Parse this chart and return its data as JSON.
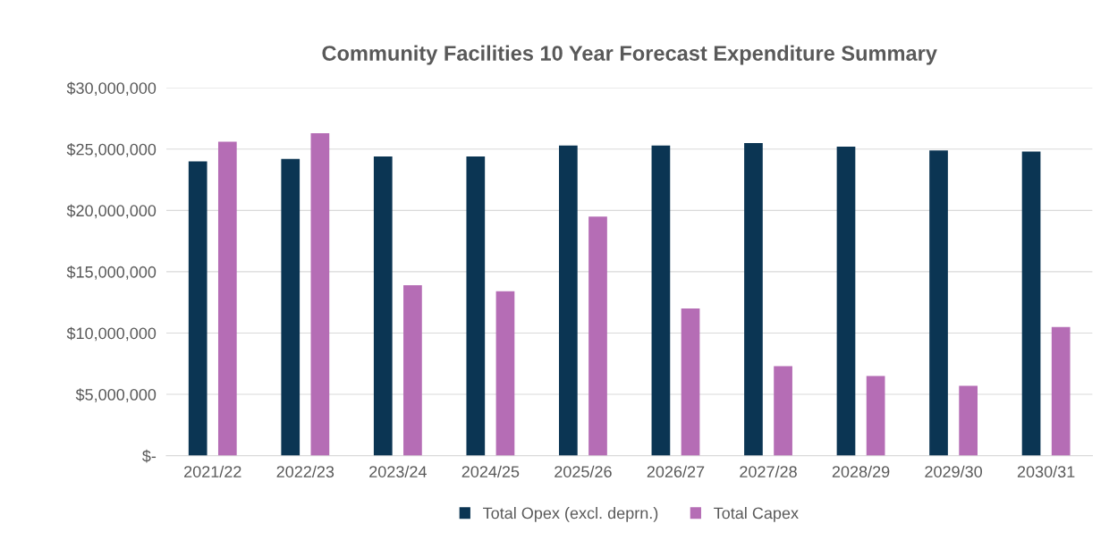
{
  "chart_data": {
    "type": "bar",
    "title": "Community Facilities 10 Year Forecast Expenditure Summary",
    "categories": [
      "2021/22",
      "2022/23",
      "2023/24",
      "2024/25",
      "2025/26",
      "2026/27",
      "2027/28",
      "2028/29",
      "2029/30",
      "2030/31"
    ],
    "series": [
      {
        "name": "Total Opex (excl. deprn.)",
        "color": "#0b3553",
        "values": [
          24000000,
          24200000,
          24400000,
          24400000,
          25300000,
          25300000,
          25500000,
          25200000,
          24900000,
          24800000
        ]
      },
      {
        "name": "Total Capex",
        "color": "#b56db5",
        "values": [
          25600000,
          26300000,
          13900000,
          13400000,
          19500000,
          12000000,
          7300000,
          6500000,
          5700000,
          10500000
        ]
      }
    ],
    "ylim": [
      0,
      30000000
    ],
    "yticks": [
      {
        "value": 0,
        "label": "$-"
      },
      {
        "value": 5000000,
        "label": "$5,000,000"
      },
      {
        "value": 10000000,
        "label": "$10,000,000"
      },
      {
        "value": 15000000,
        "label": "$15,000,000"
      },
      {
        "value": 20000000,
        "label": "$20,000,000"
      },
      {
        "value": 25000000,
        "label": "$25,000,000"
      },
      {
        "value": 30000000,
        "label": "$30,000,000"
      }
    ],
    "grid": "y",
    "legend": "bottom"
  }
}
